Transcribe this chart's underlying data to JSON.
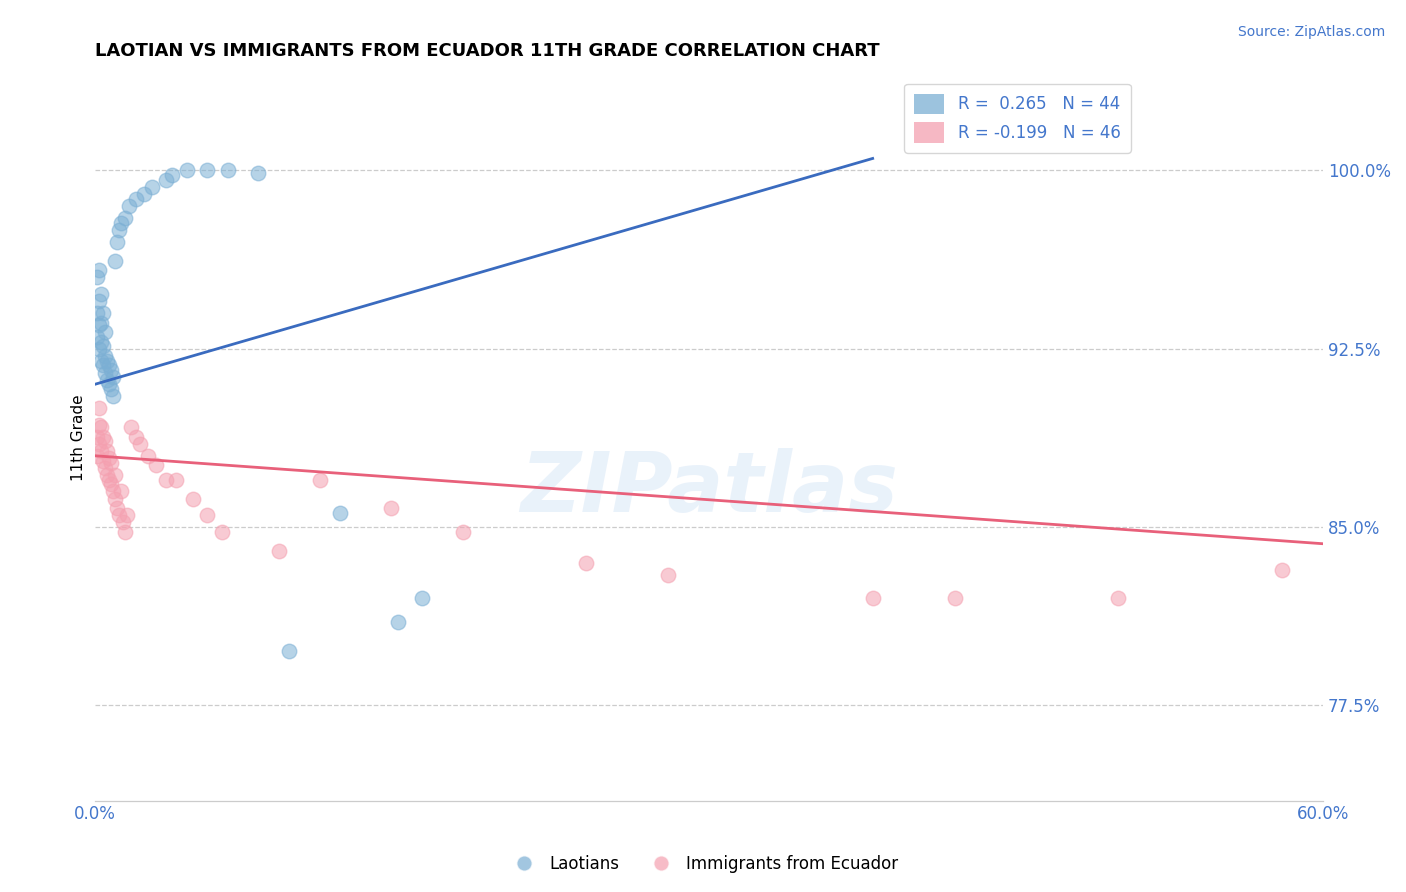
{
  "title": "LAOTIAN VS IMMIGRANTS FROM ECUADOR 11TH GRADE CORRELATION CHART",
  "source": "Source: ZipAtlas.com",
  "ylabel": "11th Grade",
  "ytick_labels": [
    "77.5%",
    "85.0%",
    "92.5%",
    "100.0%"
  ],
  "ytick_values": [
    0.775,
    0.85,
    0.925,
    1.0
  ],
  "xlim": [
    0.0,
    0.6
  ],
  "ylim": [
    0.735,
    1.04
  ],
  "blue_color": "#7BAFD4",
  "pink_color": "#F4A0B0",
  "blue_line_color": "#3A6BBF",
  "pink_line_color": "#E8607A",
  "text_color": "#4477CC",
  "watermark": "ZIPatlas",
  "blue_trend_x0": 0.0,
  "blue_trend_y0": 0.91,
  "blue_trend_x1": 0.38,
  "blue_trend_y1": 1.005,
  "pink_trend_x0": 0.0,
  "pink_trend_y0": 0.88,
  "pink_trend_x1": 0.6,
  "pink_trend_y1": 0.843,
  "blue_x": [
    0.001,
    0.001,
    0.001,
    0.002,
    0.002,
    0.002,
    0.002,
    0.003,
    0.003,
    0.003,
    0.003,
    0.004,
    0.004,
    0.004,
    0.005,
    0.005,
    0.005,
    0.006,
    0.006,
    0.007,
    0.007,
    0.008,
    0.008,
    0.009,
    0.009,
    0.01,
    0.011,
    0.012,
    0.013,
    0.015,
    0.017,
    0.02,
    0.024,
    0.028,
    0.035,
    0.038,
    0.045,
    0.055,
    0.065,
    0.08,
    0.095,
    0.12,
    0.148,
    0.16
  ],
  "blue_y": [
    0.93,
    0.94,
    0.955,
    0.925,
    0.935,
    0.945,
    0.958,
    0.92,
    0.928,
    0.936,
    0.948,
    0.918,
    0.926,
    0.94,
    0.915,
    0.922,
    0.932,
    0.912,
    0.92,
    0.91,
    0.918,
    0.908,
    0.916,
    0.905,
    0.913,
    0.962,
    0.97,
    0.975,
    0.978,
    0.98,
    0.985,
    0.988,
    0.99,
    0.993,
    0.996,
    0.998,
    1.0,
    1.0,
    1.0,
    0.999,
    0.798,
    0.856,
    0.81,
    0.82
  ],
  "pink_x": [
    0.001,
    0.001,
    0.002,
    0.002,
    0.002,
    0.003,
    0.003,
    0.004,
    0.004,
    0.005,
    0.005,
    0.006,
    0.006,
    0.007,
    0.007,
    0.008,
    0.008,
    0.009,
    0.01,
    0.01,
    0.011,
    0.012,
    0.013,
    0.014,
    0.015,
    0.016,
    0.018,
    0.02,
    0.022,
    0.026,
    0.03,
    0.035,
    0.04,
    0.048,
    0.055,
    0.062,
    0.09,
    0.11,
    0.145,
    0.18,
    0.24,
    0.28,
    0.38,
    0.42,
    0.5,
    0.58
  ],
  "pink_y": [
    0.88,
    0.888,
    0.885,
    0.893,
    0.9,
    0.882,
    0.892,
    0.878,
    0.888,
    0.875,
    0.886,
    0.872,
    0.882,
    0.87,
    0.879,
    0.868,
    0.877,
    0.865,
    0.862,
    0.872,
    0.858,
    0.855,
    0.865,
    0.852,
    0.848,
    0.855,
    0.892,
    0.888,
    0.885,
    0.88,
    0.876,
    0.87,
    0.87,
    0.862,
    0.855,
    0.848,
    0.84,
    0.87,
    0.858,
    0.848,
    0.835,
    0.83,
    0.82,
    0.82,
    0.82,
    0.832
  ]
}
